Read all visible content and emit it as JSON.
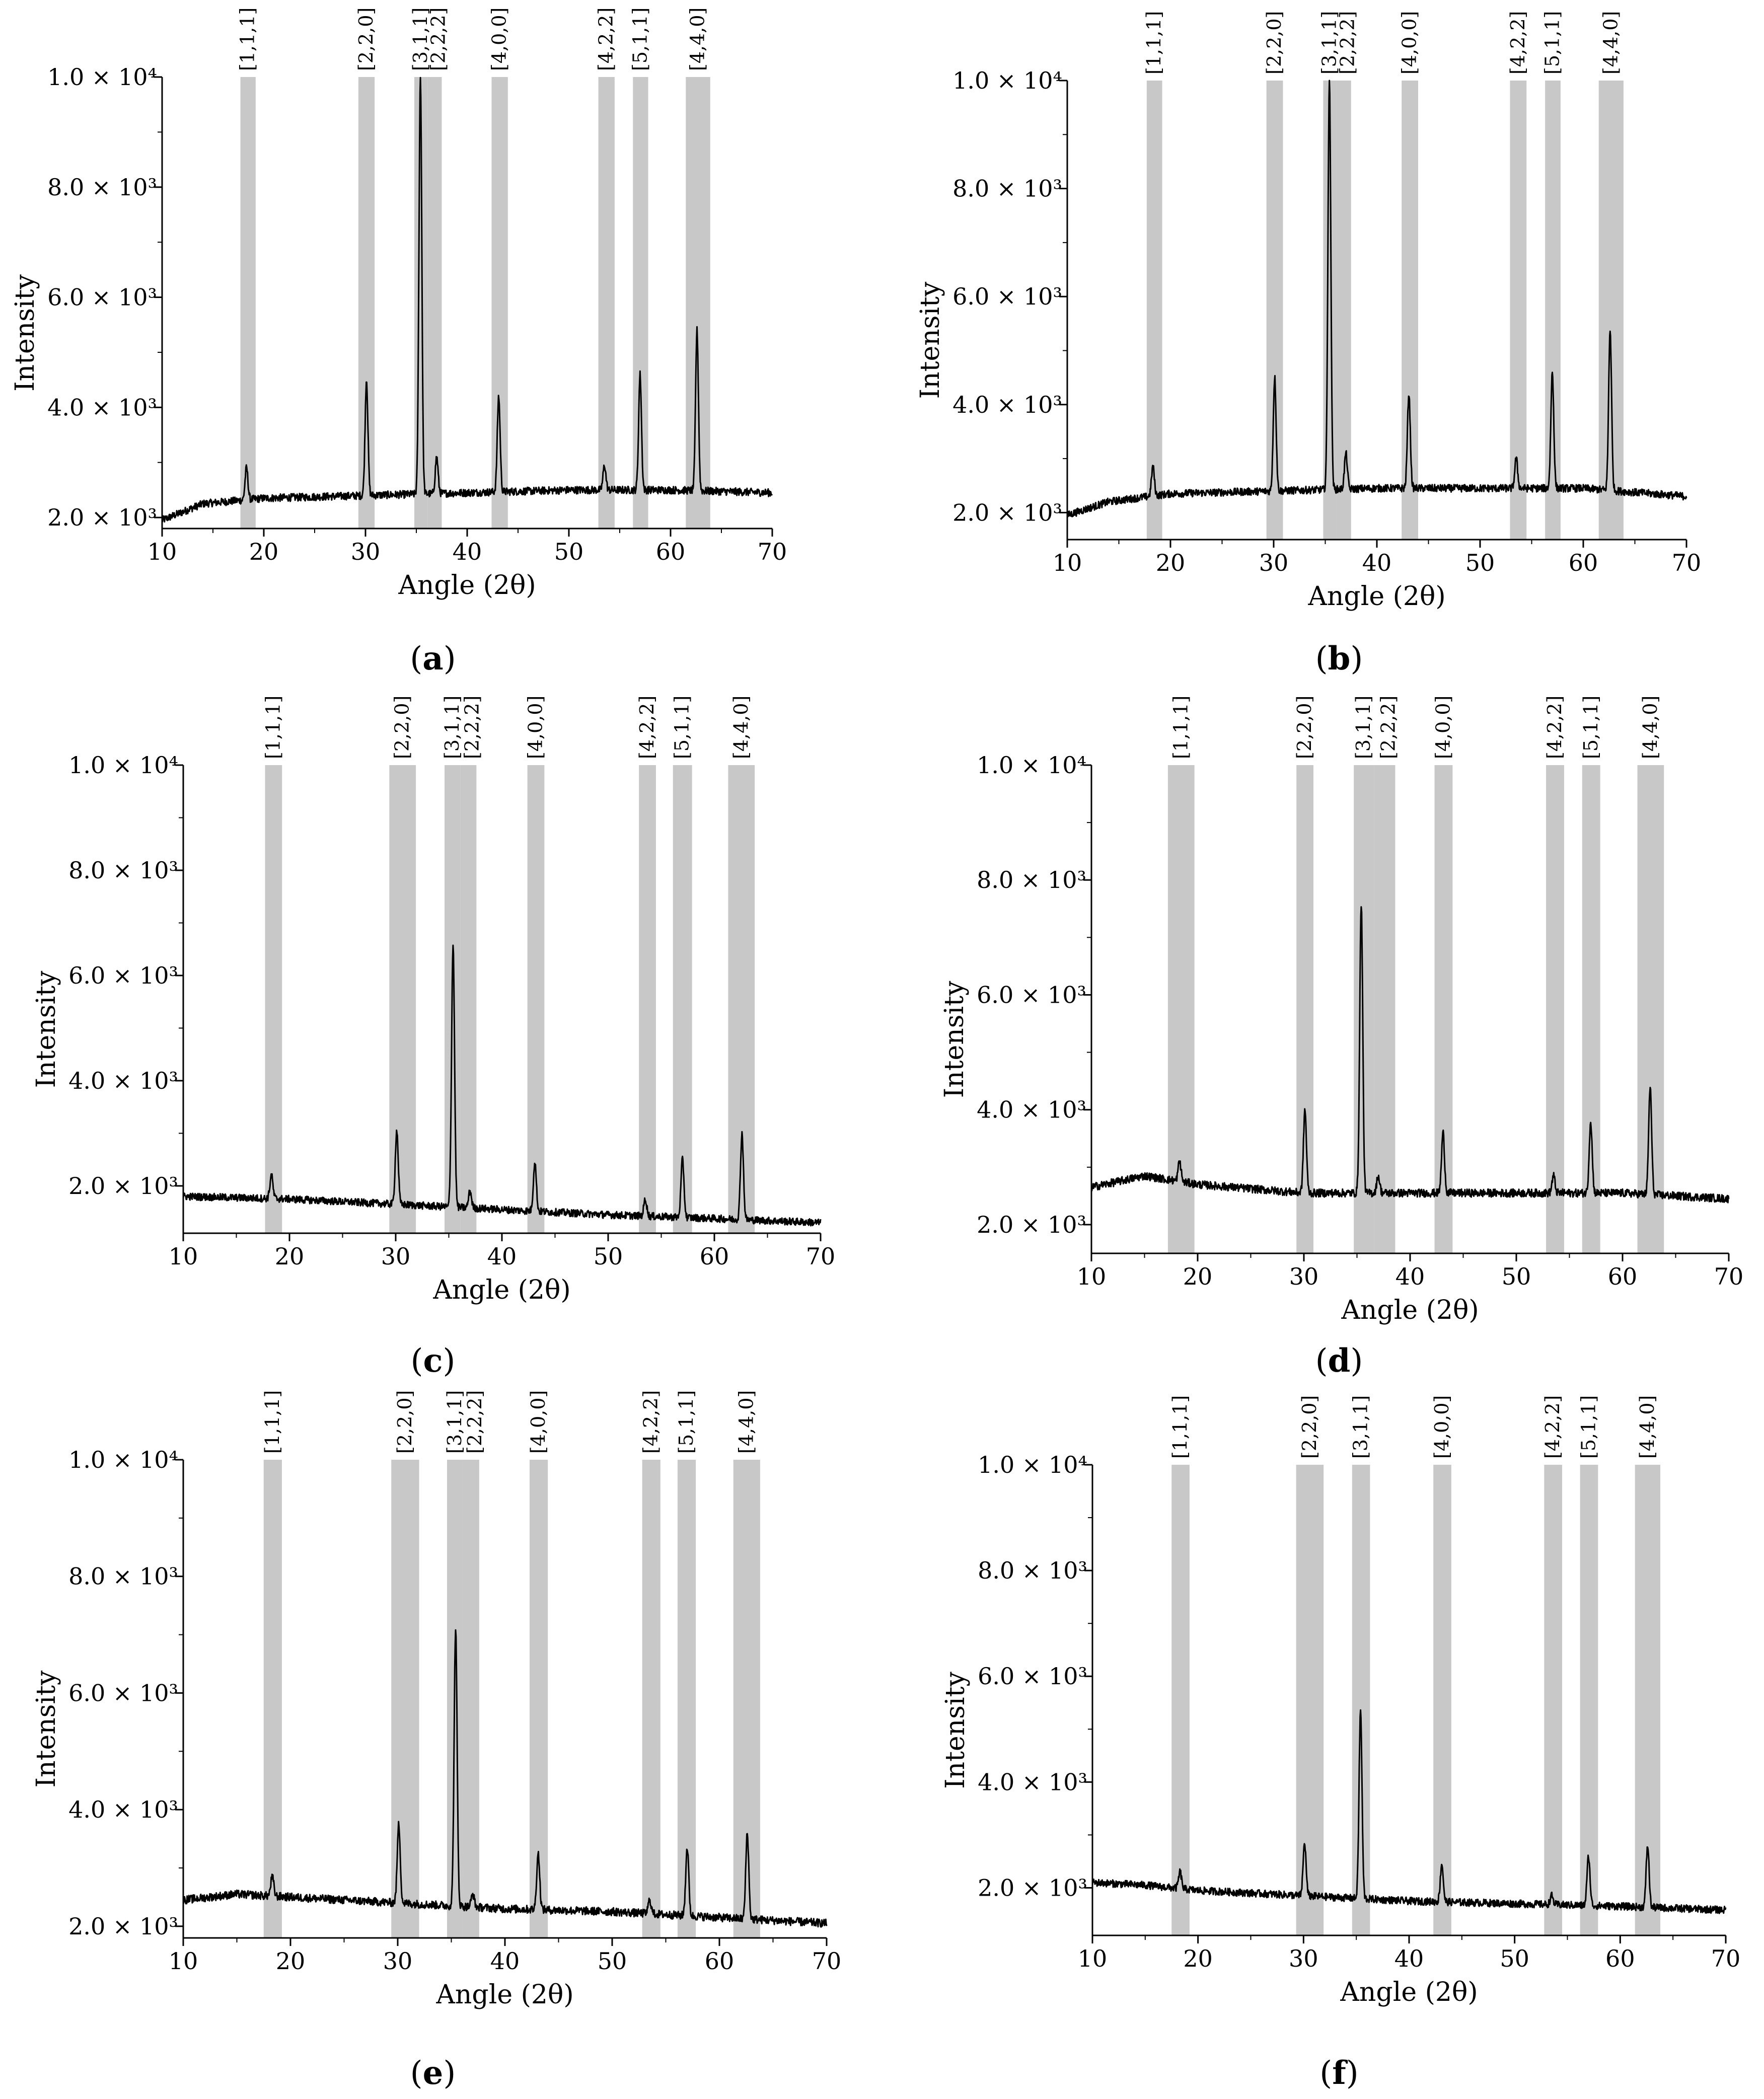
{
  "chart_data": [
    {
      "panel": "a",
      "type": "line",
      "xlabel": "Angle (2θ)",
      "ylabel": "Intensity",
      "xlim": [
        10,
        70
      ],
      "ylim": [
        1800,
        10000
      ],
      "xticks": [
        10,
        20,
        30,
        40,
        50,
        60,
        70
      ],
      "ytick_labels": [
        "2.0 × 10³",
        "4.0 × 10³",
        "6.0 × 10³",
        "8.0 × 10³",
        "1.0 × 10⁴"
      ],
      "bands": [
        {
          "label": "[1,1,1]",
          "from": 17.7,
          "to": 19.2
        },
        {
          "label": "[2,2,0]",
          "from": 29.3,
          "to": 30.9
        },
        {
          "label": "[3,1,1]",
          "from": 34.8,
          "to": 36.1
        },
        {
          "label": "[2,2,2]",
          "from": 36.1,
          "to": 37.5
        },
        {
          "label": "[4,0,0]",
          "from": 42.4,
          "to": 44.0
        },
        {
          "label": "[4,2,2]",
          "from": 52.9,
          "to": 54.5
        },
        {
          "label": "[5,1,1]",
          "from": 56.3,
          "to": 57.8
        },
        {
          "label": "[4,4,0]",
          "from": 61.5,
          "to": 63.9
        }
      ],
      "baseline": [
        [
          10,
          1950
        ],
        [
          14,
          2250
        ],
        [
          20,
          2350
        ],
        [
          30,
          2400
        ],
        [
          40,
          2450
        ],
        [
          50,
          2500
        ],
        [
          60,
          2500
        ],
        [
          70,
          2450
        ]
      ],
      "peaks": [
        [
          18.3,
          2900
        ],
        [
          30.1,
          4500
        ],
        [
          35.4,
          10000
        ],
        [
          37.0,
          3100
        ],
        [
          43.1,
          4200
        ],
        [
          53.5,
          2950
        ],
        [
          57.0,
          4600
        ],
        [
          62.6,
          5400
        ]
      ]
    },
    {
      "panel": "b",
      "type": "line",
      "xlabel": "Angle (2θ)",
      "ylabel": "Intensity",
      "xlim": [
        10,
        70
      ],
      "ylim": [
        1500,
        10000
      ],
      "xticks": [
        10,
        20,
        30,
        40,
        50,
        60,
        70
      ],
      "ytick_labels": [
        "2.0 × 10³",
        "4.0 × 10³",
        "6.0 × 10³",
        "8.0 × 10³",
        "1.0 × 10⁴"
      ],
      "bands": [
        {
          "label": "[1,1,1]",
          "from": 17.7,
          "to": 19.2
        },
        {
          "label": "[2,2,0]",
          "from": 29.3,
          "to": 30.9
        },
        {
          "label": "[3,1,1]",
          "from": 34.8,
          "to": 36.1
        },
        {
          "label": "[2,2,2]",
          "from": 36.1,
          "to": 37.5
        },
        {
          "label": "[4,0,0]",
          "from": 42.4,
          "to": 44.0
        },
        {
          "label": "[4,2,2]",
          "from": 52.9,
          "to": 54.5
        },
        {
          "label": "[5,1,1]",
          "from": 56.3,
          "to": 57.8
        },
        {
          "label": "[4,4,0]",
          "from": 61.5,
          "to": 63.9
        }
      ],
      "baseline": [
        [
          10,
          1950
        ],
        [
          14,
          2200
        ],
        [
          20,
          2350
        ],
        [
          30,
          2400
        ],
        [
          40,
          2450
        ],
        [
          50,
          2450
        ],
        [
          60,
          2450
        ],
        [
          70,
          2300
        ]
      ],
      "peaks": [
        [
          18.3,
          2850
        ],
        [
          30.1,
          4500
        ],
        [
          35.4,
          10000
        ],
        [
          37.0,
          3100
        ],
        [
          43.1,
          4200
        ],
        [
          53.5,
          3000
        ],
        [
          57.0,
          4600
        ],
        [
          62.6,
          5400
        ]
      ]
    },
    {
      "panel": "c",
      "type": "line",
      "xlabel": "Angle (2θ)",
      "ylabel": "Intensity",
      "xlim": [
        10,
        70
      ],
      "ylim": [
        1100,
        10000
      ],
      "xticks": [
        10,
        20,
        30,
        40,
        50,
        60,
        70
      ],
      "ytick_labels": [
        "2.0 × 10³",
        "4.0 × 10³",
        "6.0 × 10³",
        "8.0 × 10³",
        "1.0 × 10⁴"
      ],
      "bands": [
        {
          "label": "[1,1,1]",
          "from": 17.7,
          "to": 19.3
        },
        {
          "label": "[2,2,0]",
          "from": 29.4,
          "to": 31.9
        },
        {
          "label": "[3,1,1]",
          "from": 34.6,
          "to": 36.1
        },
        {
          "label": "[2,2,2]",
          "from": 36.1,
          "to": 37.6
        },
        {
          "label": "[4,0,0]",
          "from": 42.4,
          "to": 44.0
        },
        {
          "label": "[4,2,2]",
          "from": 52.9,
          "to": 54.5
        },
        {
          "label": "[5,1,1]",
          "from": 56.1,
          "to": 57.9
        },
        {
          "label": "[4,4,0]",
          "from": 61.3,
          "to": 63.8
        }
      ],
      "baseline": [
        [
          10,
          1800
        ],
        [
          20,
          1750
        ],
        [
          30,
          1650
        ],
        [
          40,
          1550
        ],
        [
          50,
          1450
        ],
        [
          60,
          1380
        ],
        [
          70,
          1300
        ]
      ],
      "peaks": [
        [
          18.3,
          2200
        ],
        [
          30.1,
          3050
        ],
        [
          35.4,
          6600
        ],
        [
          37.0,
          1900
        ],
        [
          43.1,
          2450
        ],
        [
          53.5,
          1750
        ],
        [
          57.0,
          2500
        ],
        [
          62.6,
          3000
        ]
      ]
    },
    {
      "panel": "d",
      "type": "line",
      "xlabel": "Angle (2θ)",
      "ylabel": "Intensity",
      "xlim": [
        10,
        70
      ],
      "ylim": [
        1500,
        10000
      ],
      "xticks": [
        10,
        20,
        30,
        40,
        50,
        60,
        70
      ],
      "ytick_labels": [
        "2.0 × 10³",
        "4.0 × 10³",
        "6.0 × 10³",
        "8.0 × 10³",
        "1.0 × 10⁴"
      ],
      "bands": [
        {
          "label": "[1,1,1]",
          "from": 17.2,
          "to": 19.7
        },
        {
          "label": "[2,2,0]",
          "from": 29.3,
          "to": 30.9
        },
        {
          "label": "[3,1,1]",
          "from": 34.7,
          "to": 36.6
        },
        {
          "label": "[2,2,2]",
          "from": 36.6,
          "to": 38.6
        },
        {
          "label": "[4,0,0]",
          "from": 42.3,
          "to": 44.0
        },
        {
          "label": "[4,2,2]",
          "from": 52.8,
          "to": 54.5
        },
        {
          "label": "[5,1,1]",
          "from": 56.2,
          "to": 57.9
        },
        {
          "label": "[4,4,0]",
          "from": 61.4,
          "to": 63.9
        }
      ],
      "baseline": [
        [
          10,
          2650
        ],
        [
          15,
          2850
        ],
        [
          20,
          2700
        ],
        [
          30,
          2550
        ],
        [
          40,
          2550
        ],
        [
          50,
          2550
        ],
        [
          60,
          2550
        ],
        [
          70,
          2450
        ]
      ],
      "peaks": [
        [
          18.3,
          3100
        ],
        [
          30.1,
          4000
        ],
        [
          35.4,
          7600
        ],
        [
          37.0,
          2850
        ],
        [
          43.1,
          3600
        ],
        [
          53.5,
          2850
        ],
        [
          57.0,
          3800
        ],
        [
          62.6,
          4400
        ]
      ]
    },
    {
      "panel": "e",
      "type": "line",
      "xlabel": "Angle (2θ)",
      "ylabel": "Intensity",
      "xlim": [
        10,
        70
      ],
      "ylim": [
        1800,
        10000
      ],
      "xticks": [
        10,
        20,
        30,
        40,
        50,
        60,
        70
      ],
      "ytick_labels": [
        "2.0 × 10³",
        "4.0 × 10³",
        "6.0 × 10³",
        "8.0 × 10³",
        "1.0 × 10⁴"
      ],
      "bands": [
        {
          "label": "[1,1,1]",
          "from": 17.5,
          "to": 19.2
        },
        {
          "label": "[2,2,0]",
          "from": 29.4,
          "to": 32.0
        },
        {
          "label": "[3,1,1]",
          "from": 34.6,
          "to": 36.1
        },
        {
          "label": "[2,2,2]",
          "from": 36.1,
          "to": 37.6
        },
        {
          "label": "[4,0,0]",
          "from": 42.3,
          "to": 44.0
        },
        {
          "label": "[4,2,2]",
          "from": 52.8,
          "to": 54.5
        },
        {
          "label": "[5,1,1]",
          "from": 56.1,
          "to": 57.8
        },
        {
          "label": "[4,4,0]",
          "from": 61.3,
          "to": 63.8
        }
      ],
      "baseline": [
        [
          10,
          2450
        ],
        [
          15,
          2550
        ],
        [
          20,
          2500
        ],
        [
          30,
          2400
        ],
        [
          40,
          2300
        ],
        [
          50,
          2250
        ],
        [
          60,
          2150
        ],
        [
          70,
          2050
        ]
      ],
      "peaks": [
        [
          18.3,
          2850
        ],
        [
          30.1,
          3750
        ],
        [
          35.4,
          7100
        ],
        [
          37.0,
          2550
        ],
        [
          43.1,
          3250
        ],
        [
          53.5,
          2450
        ],
        [
          57.0,
          3350
        ],
        [
          62.6,
          3600
        ]
      ]
    },
    {
      "panel": "f",
      "type": "line",
      "xlabel": "Angle (2θ)",
      "ylabel": "Intensity",
      "xlim": [
        10,
        70
      ],
      "ylim": [
        1100,
        10000
      ],
      "xticks": [
        10,
        20,
        30,
        40,
        50,
        60,
        70
      ],
      "ytick_labels": [
        "2.0 × 10³",
        "4.0 × 10³",
        "6.0 × 10³",
        "8.0 × 10³",
        "1.0 × 10⁴"
      ],
      "bands": [
        {
          "label": "[1,1,1]",
          "from": 17.5,
          "to": 19.2
        },
        {
          "label": "[2,2,0]",
          "from": 29.3,
          "to": 31.9
        },
        {
          "label": "[3,1,1]",
          "from": 34.6,
          "to": 36.3
        },
        {
          "label": "[4,0,0]",
          "from": 42.3,
          "to": 44.0
        },
        {
          "label": "[4,2,2]",
          "from": 52.8,
          "to": 54.5
        },
        {
          "label": "[5,1,1]",
          "from": 56.2,
          "to": 57.9
        },
        {
          "label": "[4,4,0]",
          "from": 61.4,
          "to": 63.8
        }
      ],
      "baseline": [
        [
          10,
          2100
        ],
        [
          15,
          2050
        ],
        [
          20,
          1950
        ],
        [
          30,
          1850
        ],
        [
          40,
          1750
        ],
        [
          50,
          1700
        ],
        [
          60,
          1650
        ],
        [
          70,
          1580
        ]
      ],
      "peaks": [
        [
          18.3,
          2300
        ],
        [
          30.1,
          2850
        ],
        [
          35.4,
          5350
        ],
        [
          43.1,
          2450
        ],
        [
          53.5,
          1850
        ],
        [
          57.0,
          2600
        ],
        [
          62.6,
          2800
        ]
      ]
    }
  ],
  "panel_labels": [
    "(a)",
    "(b)",
    "(c)",
    "(d)",
    "(e)",
    "(f)"
  ]
}
